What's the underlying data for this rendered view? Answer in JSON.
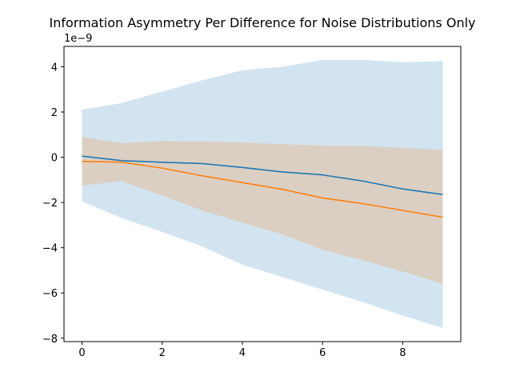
{
  "chart_data": {
    "type": "line",
    "title": "Information Asymmetry Per Difference for Noise Distributions Only",
    "xlabel": "",
    "ylabel": "",
    "y_scale_label": "1e−9",
    "y_scale_factor": 1e-09,
    "xlim": [
      -0.45,
      9.45
    ],
    "ylim": [
      -8.15,
      4.9
    ],
    "grid": false,
    "legend": "none",
    "x_ticks": [
      0,
      2,
      4,
      6,
      8
    ],
    "x_tick_labels": [
      "0",
      "2",
      "4",
      "6",
      "8"
    ],
    "y_ticks": [
      4,
      2,
      0,
      -2,
      -4,
      -6,
      -8
    ],
    "y_tick_labels": [
      "4",
      "2",
      "0",
      "−2",
      "−4",
      "−6",
      "−8"
    ],
    "x": [
      0,
      1,
      2,
      3,
      4,
      5,
      6,
      7,
      8,
      9
    ],
    "series": [
      {
        "color": "#1f77b4",
        "band_color": "#1f77b4",
        "band_opacity": 0.2,
        "values": [
          0.05,
          -0.15,
          -0.22,
          -0.28,
          -0.45,
          -0.65,
          -0.78,
          -1.05,
          -1.4,
          -1.65
        ],
        "lower": [
          -1.95,
          -2.7,
          -3.3,
          -3.95,
          -4.75,
          -5.3,
          -5.85,
          -6.4,
          -7.0,
          -7.55
        ],
        "upper": [
          2.1,
          2.4,
          2.9,
          3.4,
          3.85,
          4.0,
          4.3,
          4.3,
          4.2,
          4.25
        ]
      },
      {
        "color": "#ff7f0e",
        "band_color": "#ff7f0e",
        "band_opacity": 0.2,
        "values": [
          -0.18,
          -0.22,
          -0.48,
          -0.82,
          -1.12,
          -1.42,
          -1.8,
          -2.05,
          -2.35,
          -2.65
        ],
        "lower": [
          -1.25,
          -1.05,
          -1.7,
          -2.35,
          -2.9,
          -3.4,
          -4.1,
          -4.55,
          -5.05,
          -5.6
        ],
        "upper": [
          0.9,
          0.62,
          0.72,
          0.7,
          0.65,
          0.58,
          0.52,
          0.5,
          0.42,
          0.33
        ]
      }
    ]
  }
}
